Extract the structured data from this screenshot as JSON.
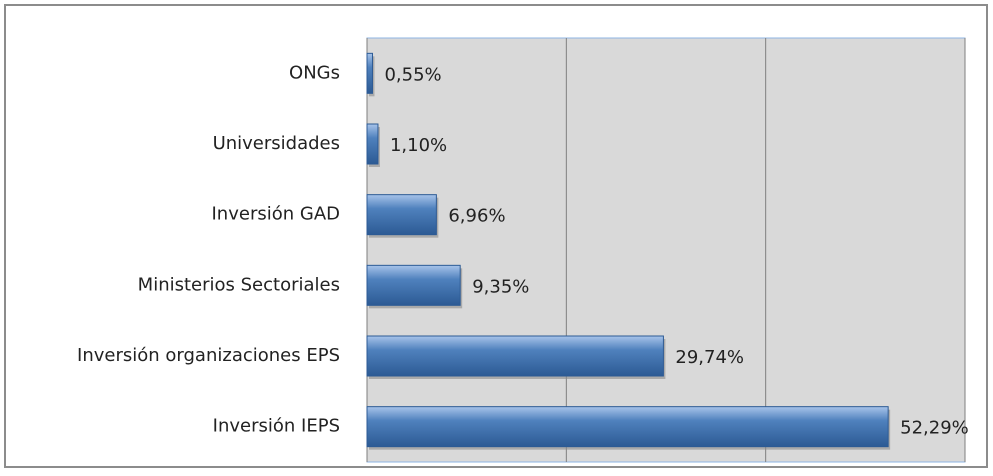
{
  "chart_data": {
    "type": "bar",
    "orientation": "horizontal",
    "categories": [
      "ONGs",
      "Universidades",
      "Inversión GAD",
      "Ministerios Sectoriales",
      "Inversión organizaciones EPS",
      "Inversión IEPS"
    ],
    "values": [
      0.55,
      1.1,
      6.96,
      9.35,
      29.74,
      52.29
    ],
    "value_labels": [
      "0,55%",
      "1,10%",
      "6,96%",
      "9,35%",
      "29,74%",
      "52,29%"
    ],
    "color": "#4f81bd",
    "xlim": [
      0,
      60
    ],
    "xticks": [
      0,
      20,
      40,
      60
    ],
    "grid": true
  }
}
